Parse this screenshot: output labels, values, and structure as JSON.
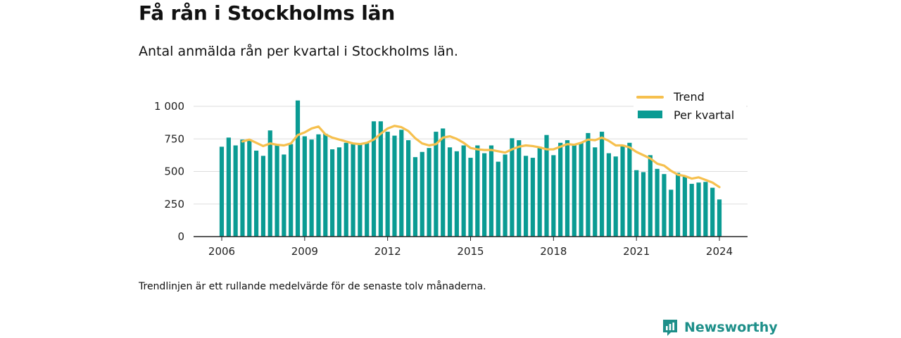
{
  "title": "Få rån i Stockholms län",
  "subtitle": "Antal anmälda rån per kvartal i Stockholms län.",
  "note": "Trendlinjen är ett rullande medelvärde för de senaste tolv månaderna.",
  "brand": {
    "name": "Newsworthy",
    "color": "#1d8f89"
  },
  "colors": {
    "bars": "#0a9b93",
    "trend": "#f6c04e",
    "grid": "#dddddd",
    "axis": "#222222"
  },
  "chart_data": {
    "type": "bar",
    "legend_position": "top-right",
    "grid": true,
    "ylim": [
      0,
      1000
    ],
    "y_ticks": [
      {
        "value": 0,
        "label": "0"
      },
      {
        "value": 250,
        "label": "250"
      },
      {
        "value": 500,
        "label": "500"
      },
      {
        "value": 750,
        "label": "750"
      },
      {
        "value": 1000,
        "label": "1 000"
      }
    ],
    "x_ticks": [
      "2006",
      "2009",
      "2012",
      "2015",
      "2018",
      "2021",
      "2024"
    ],
    "x_range": [
      "2006 Q1",
      "2024 Q1"
    ],
    "categories": [
      "2006 Q1",
      "2006 Q2",
      "2006 Q3",
      "2006 Q4",
      "2007 Q1",
      "2007 Q2",
      "2007 Q3",
      "2007 Q4",
      "2008 Q1",
      "2008 Q2",
      "2008 Q3",
      "2008 Q4",
      "2009 Q1",
      "2009 Q2",
      "2009 Q3",
      "2009 Q4",
      "2010 Q1",
      "2010 Q2",
      "2010 Q3",
      "2010 Q4",
      "2011 Q1",
      "2011 Q2",
      "2011 Q3",
      "2011 Q4",
      "2012 Q1",
      "2012 Q2",
      "2012 Q3",
      "2012 Q4",
      "2013 Q1",
      "2013 Q2",
      "2013 Q3",
      "2013 Q4",
      "2014 Q1",
      "2014 Q2",
      "2014 Q3",
      "2014 Q4",
      "2015 Q1",
      "2015 Q2",
      "2015 Q3",
      "2015 Q4",
      "2016 Q1",
      "2016 Q2",
      "2016 Q3",
      "2016 Q4",
      "2017 Q1",
      "2017 Q2",
      "2017 Q3",
      "2017 Q4",
      "2018 Q1",
      "2018 Q2",
      "2018 Q3",
      "2018 Q4",
      "2019 Q1",
      "2019 Q2",
      "2019 Q3",
      "2019 Q4",
      "2020 Q1",
      "2020 Q2",
      "2020 Q3",
      "2020 Q4",
      "2021 Q1",
      "2021 Q2",
      "2021 Q3",
      "2021 Q4",
      "2022 Q1",
      "2022 Q2",
      "2022 Q3",
      "2022 Q4",
      "2023 Q1",
      "2023 Q2",
      "2023 Q3",
      "2023 Q4",
      "2024 Q1"
    ],
    "series": [
      {
        "name": "Per kvartal",
        "kind": "bar",
        "values": [
          690,
          760,
          700,
          745,
          735,
          660,
          620,
          815,
          710,
          630,
          710,
          1045,
          770,
          745,
          785,
          790,
          670,
          685,
          720,
          710,
          715,
          720,
          885,
          885,
          805,
          775,
          820,
          740,
          610,
          650,
          680,
          805,
          830,
          685,
          655,
          700,
          605,
          700,
          640,
          700,
          575,
          630,
          755,
          740,
          620,
          605,
          690,
          780,
          625,
          720,
          740,
          710,
          720,
          795,
          685,
          805,
          640,
          615,
          705,
          720,
          510,
          495,
          625,
          520,
          480,
          360,
          490,
          465,
          405,
          415,
          420,
          375,
          285
        ]
      },
      {
        "name": "Trend",
        "kind": "line",
        "values": [
          null,
          null,
          null,
          730,
          745,
          720,
          695,
          715,
          705,
          700,
          715,
          780,
          800,
          830,
          845,
          785,
          760,
          745,
          730,
          715,
          710,
          720,
          745,
          790,
          830,
          850,
          840,
          810,
          755,
          715,
          700,
          710,
          760,
          770,
          750,
          720,
          680,
          670,
          665,
          665,
          655,
          645,
          670,
          690,
          700,
          695,
          685,
          670,
          670,
          690,
          710,
          705,
          720,
          745,
          740,
          760,
          735,
          700,
          700,
          685,
          650,
          625,
          600,
          560,
          545,
          505,
          475,
          465,
          445,
          455,
          435,
          415,
          380
        ]
      }
    ]
  }
}
